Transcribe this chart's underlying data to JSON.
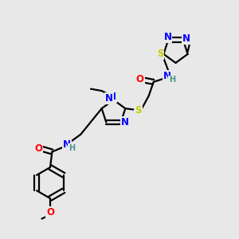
{
  "bg_color": "#e8e8e8",
  "bond_color": "#000000",
  "bond_width": 1.6,
  "atom_colors": {
    "N": "#0000ff",
    "O": "#ff0000",
    "S": "#cccc00",
    "C": "#000000",
    "H": "#4a9090"
  },
  "fs": 8.5,
  "fs2": 7.0,
  "dbo": 0.012
}
